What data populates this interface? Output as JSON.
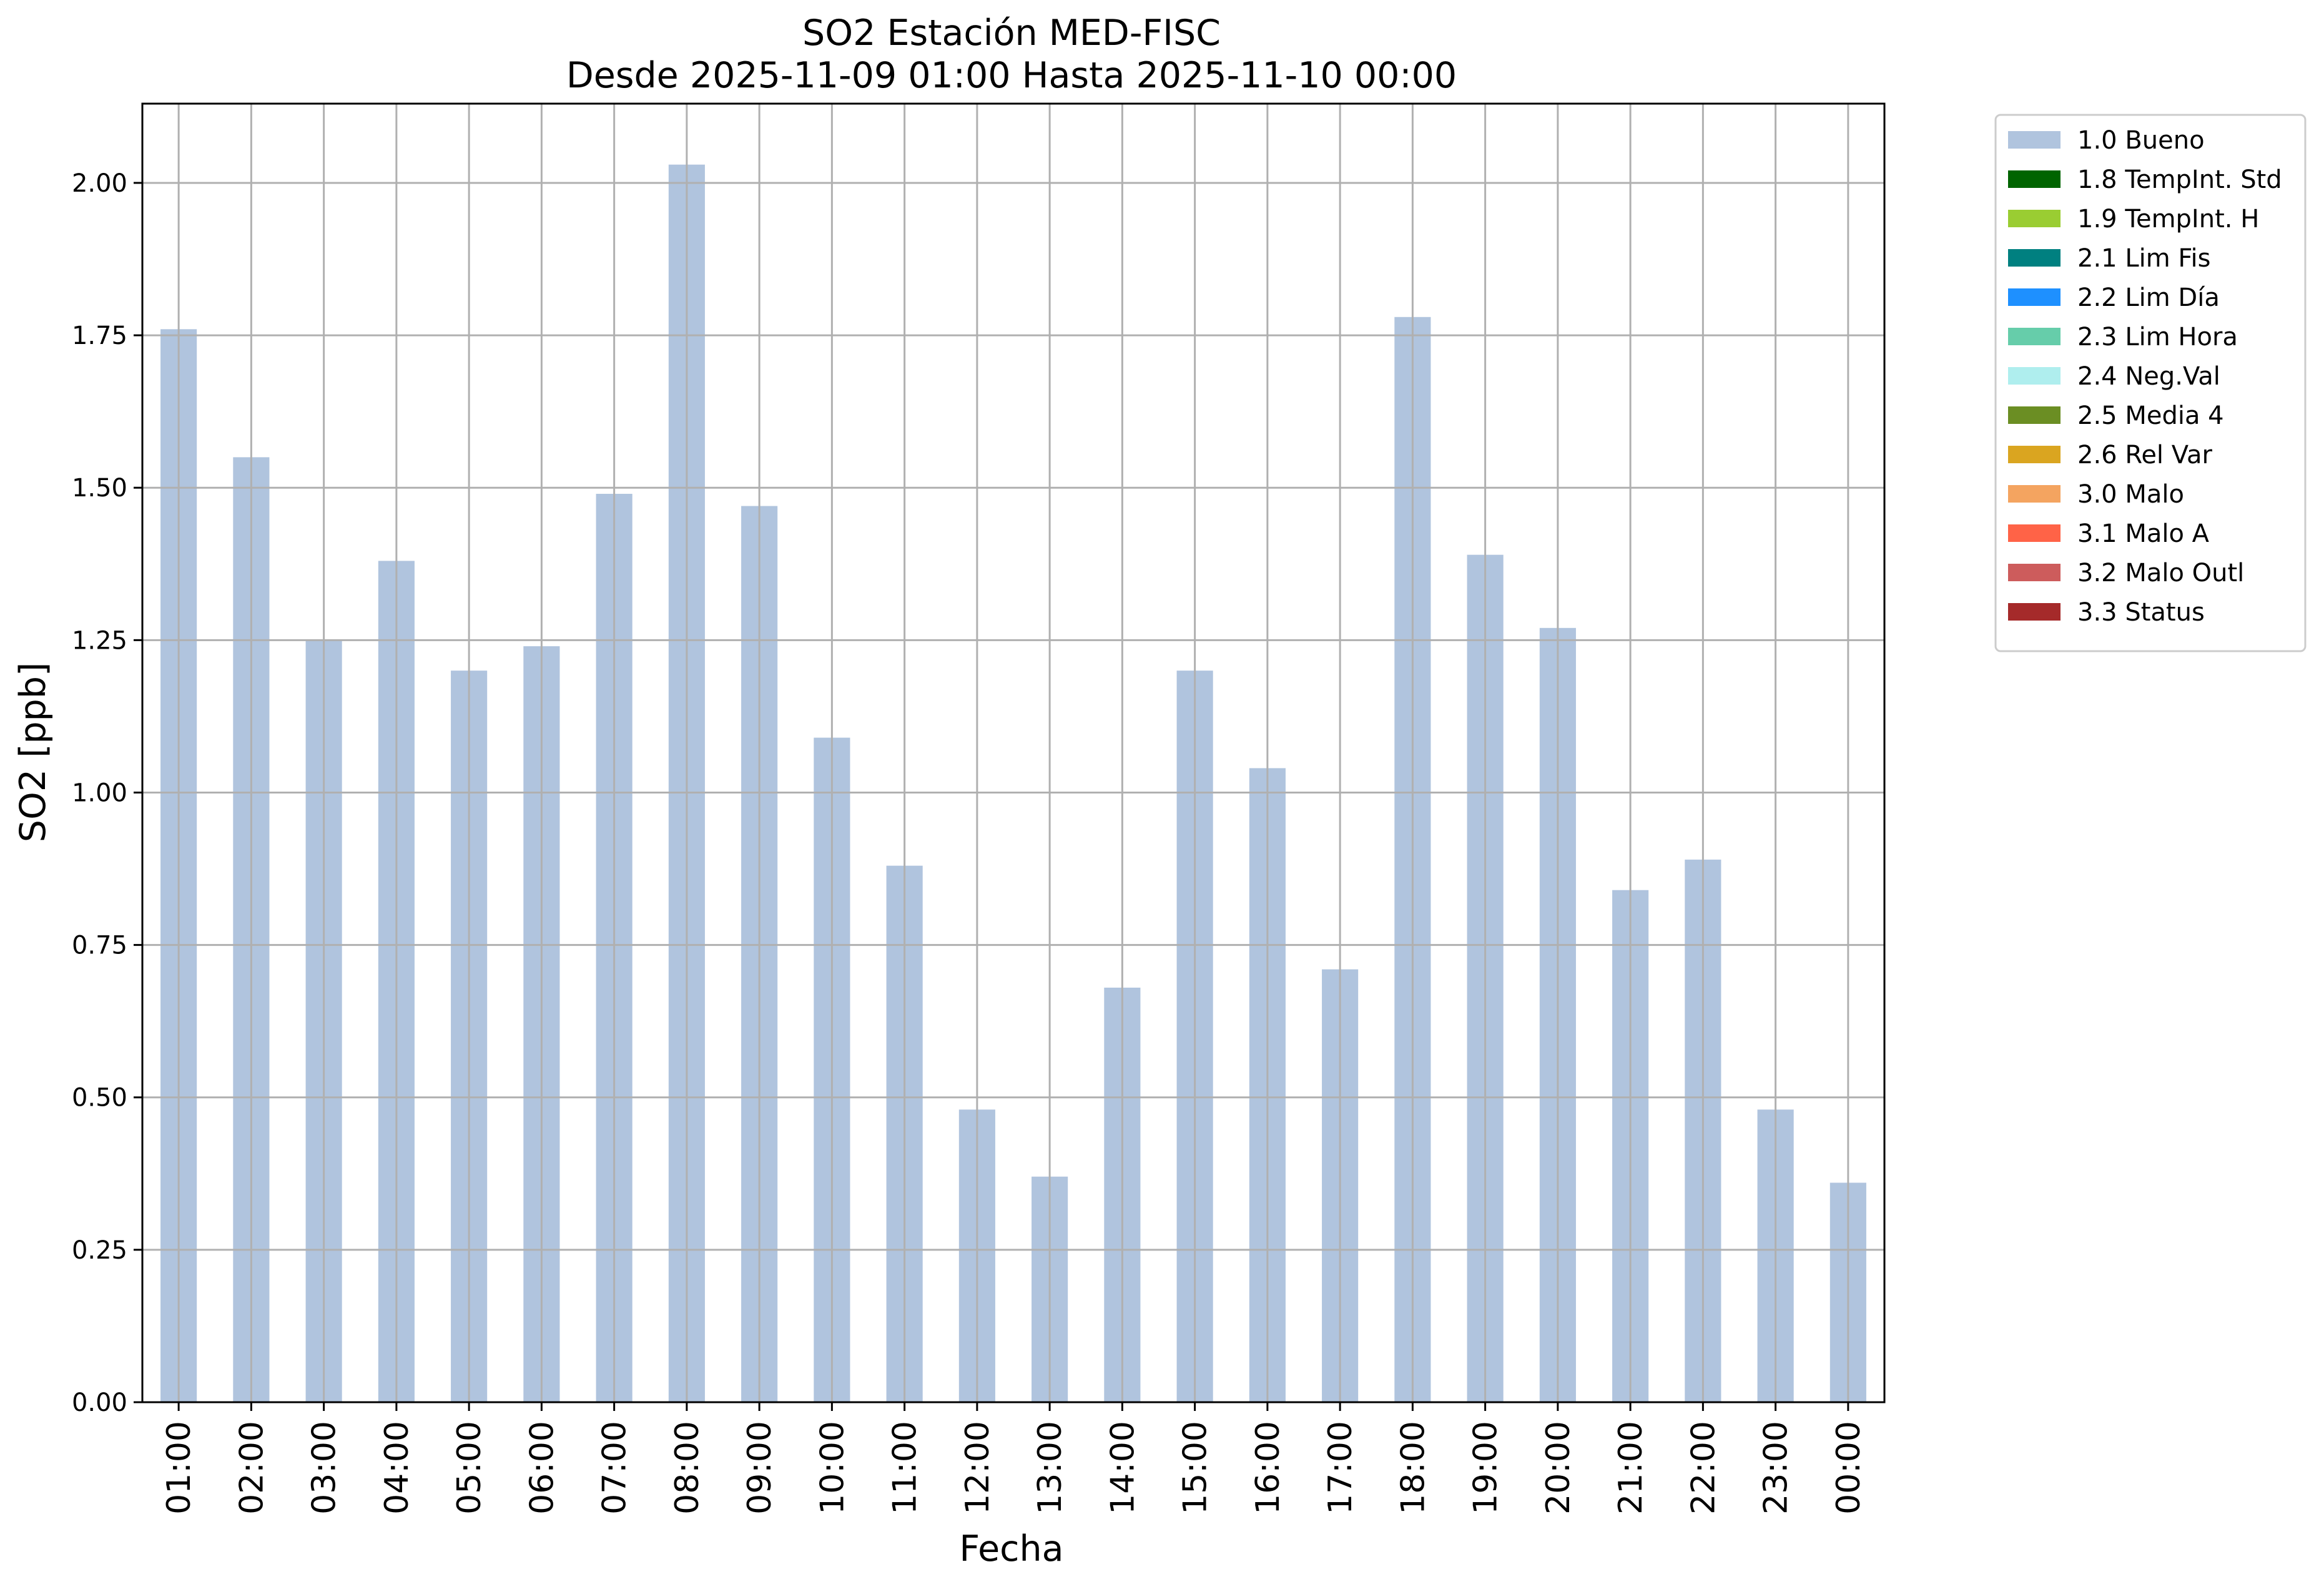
{
  "chart_data": {
    "type": "bar",
    "title": "SO2 Estación MED-FISC",
    "subtitle": "Desde 2025-11-09 01:00 Hasta 2025-11-10 00:00",
    "xlabel": "Fecha",
    "ylabel": "SO2 [ppb]",
    "ylim": [
      0,
      2.13
    ],
    "yticks": [
      "0.00",
      "0.25",
      "0.50",
      "0.75",
      "1.00",
      "1.25",
      "1.50",
      "1.75",
      "2.00"
    ],
    "grid": true,
    "legend_position": "outside top-right",
    "categories": [
      "01:00",
      "02:00",
      "03:00",
      "04:00",
      "05:00",
      "06:00",
      "07:00",
      "08:00",
      "09:00",
      "10:00",
      "11:00",
      "12:00",
      "13:00",
      "14:00",
      "15:00",
      "16:00",
      "17:00",
      "18:00",
      "19:00",
      "20:00",
      "21:00",
      "22:00",
      "23:00",
      "00:00"
    ],
    "series": [
      {
        "name": "1.0 Bueno",
        "color": "#b0c4de",
        "values": [
          1.76,
          1.55,
          1.25,
          1.38,
          1.2,
          1.24,
          1.49,
          2.03,
          1.47,
          1.09,
          0.88,
          0.48,
          0.37,
          0.68,
          1.2,
          1.04,
          0.71,
          1.78,
          1.39,
          1.27,
          0.84,
          0.89,
          0.48,
          0.36
        ]
      }
    ],
    "legend": [
      {
        "label": "1.0 Bueno",
        "color": "#b0c4de"
      },
      {
        "label": "1.8 TempInt. Std",
        "color": "#006400"
      },
      {
        "label": "1.9 TempInt. H",
        "color": "#9acd32"
      },
      {
        "label": "2.1 Lim Fis",
        "color": "#008080"
      },
      {
        "label": "2.2 Lim Día",
        "color": "#1e90ff"
      },
      {
        "label": "2.3 Lim Hora",
        "color": "#66cdaa"
      },
      {
        "label": "2.4 Neg.Val",
        "color": "#afeeee"
      },
      {
        "label": "2.5 Media 4",
        "color": "#6b8e23"
      },
      {
        "label": "2.6 Rel Var",
        "color": "#daa520"
      },
      {
        "label": "3.0 Malo",
        "color": "#f4a460"
      },
      {
        "label": "3.1 Malo A",
        "color": "#ff6347"
      },
      {
        "label": "3.2 Malo Outl",
        "color": "#cd5c5c"
      },
      {
        "label": "3.3 Status",
        "color": "#a52a2a"
      }
    ]
  }
}
